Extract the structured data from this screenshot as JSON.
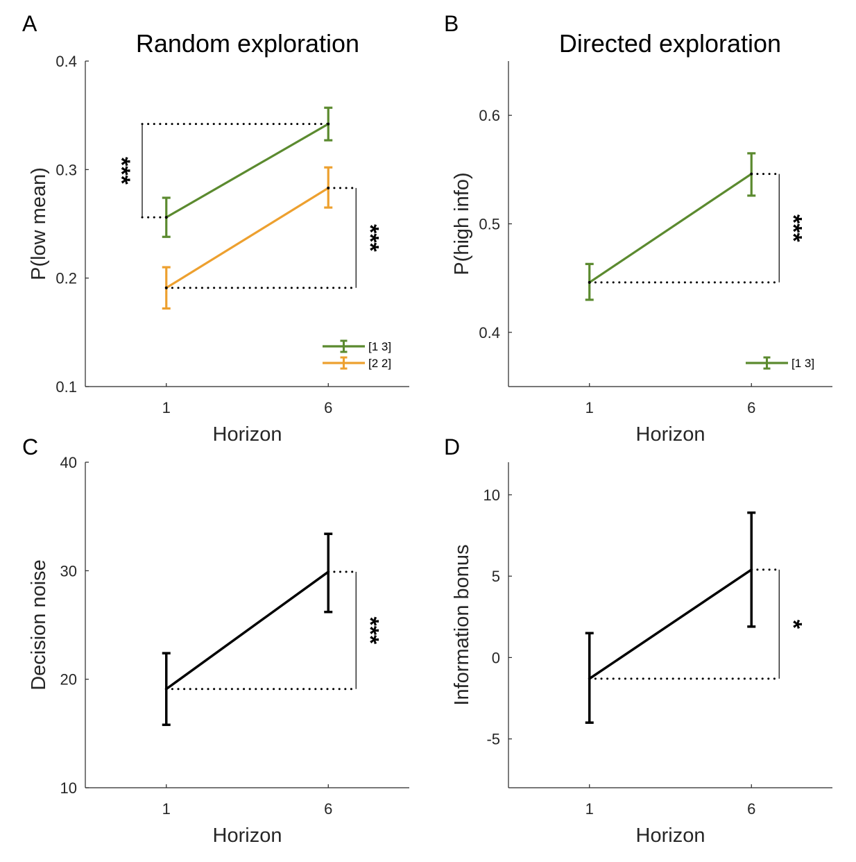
{
  "colors": {
    "green": "#5b8a2f",
    "orange": "#eda02f",
    "black": "#000000"
  },
  "chart_data": [
    {
      "type": "line",
      "panel": "A",
      "title": "Random exploration",
      "xlabel": "Horizon",
      "ylabel": "P(low mean)",
      "x": [
        1,
        6
      ],
      "xticks": [
        "1",
        "6"
      ],
      "ylim": [
        0.1,
        0.4
      ],
      "yticks": [
        "0.1",
        "0.2",
        "0.3",
        "0.4"
      ],
      "legend_position": "bottom-right",
      "series": [
        {
          "name": "[1 3]",
          "color": "#5b8a2f",
          "values": [
            0.256,
            0.342
          ],
          "err_low": [
            0.238,
            0.327
          ],
          "err_high": [
            0.274,
            0.357
          ]
        },
        {
          "name": "[2 2]",
          "color": "#eda02f",
          "values": [
            0.191,
            0.283
          ],
          "err_low": [
            0.172,
            0.265
          ],
          "err_high": [
            0.21,
            0.302
          ]
        }
      ],
      "annotations": [
        {
          "text": "***",
          "type": "vertical",
          "side": "left",
          "y1": 0.256,
          "y2": 0.342
        },
        {
          "text": "***",
          "type": "horizon",
          "side": "right",
          "y1": 0.191,
          "y2": 0.283
        }
      ]
    },
    {
      "type": "line",
      "panel": "B",
      "title": "Directed exploration",
      "xlabel": "Horizon",
      "ylabel": "P(high info)",
      "x": [
        1,
        6
      ],
      "xticks": [
        "1",
        "6"
      ],
      "ylim": [
        0.35,
        0.65
      ],
      "yticks": [
        "0.4",
        "0.5",
        "0.6"
      ],
      "ytick_values": [
        0.4,
        0.5,
        0.6
      ],
      "legend_position": "bottom-right",
      "series": [
        {
          "name": "[1 3]",
          "color": "#5b8a2f",
          "values": [
            0.446,
            0.546
          ],
          "err_low": [
            0.43,
            0.526
          ],
          "err_high": [
            0.463,
            0.565
          ]
        }
      ],
      "annotations": [
        {
          "text": "***",
          "type": "horizon",
          "side": "right",
          "y1": 0.446,
          "y2": 0.546
        }
      ]
    },
    {
      "type": "line",
      "panel": "C",
      "title": "",
      "xlabel": "Horizon",
      "ylabel": "Decision noise",
      "x": [
        1,
        6
      ],
      "xticks": [
        "1",
        "6"
      ],
      "ylim": [
        10,
        40
      ],
      "yticks": [
        "10",
        "20",
        "30",
        "40"
      ],
      "series": [
        {
          "color": "#000000",
          "values": [
            19.1,
            29.9
          ],
          "err_low": [
            15.8,
            26.2
          ],
          "err_high": [
            22.4,
            33.4
          ]
        }
      ],
      "annotations": [
        {
          "text": "***",
          "type": "horizon",
          "side": "right",
          "y1": 19.1,
          "y2": 29.9
        }
      ]
    },
    {
      "type": "line",
      "panel": "D",
      "title": "",
      "xlabel": "Horizon",
      "ylabel": "Information bonus",
      "x": [
        1,
        6
      ],
      "xticks": [
        "1",
        "6"
      ],
      "ylim": [
        -8,
        12
      ],
      "yticks": [
        "-5",
        "0",
        "5",
        "10"
      ],
      "ytick_values": [
        -5,
        0,
        5,
        10
      ],
      "series": [
        {
          "color": "#000000",
          "values": [
            -1.3,
            5.4
          ],
          "err_low": [
            -4.0,
            1.9
          ],
          "err_high": [
            1.5,
            8.9
          ]
        }
      ],
      "annotations": [
        {
          "text": "*",
          "type": "horizon",
          "side": "right",
          "y1": -1.3,
          "y2": 5.4
        }
      ]
    }
  ]
}
